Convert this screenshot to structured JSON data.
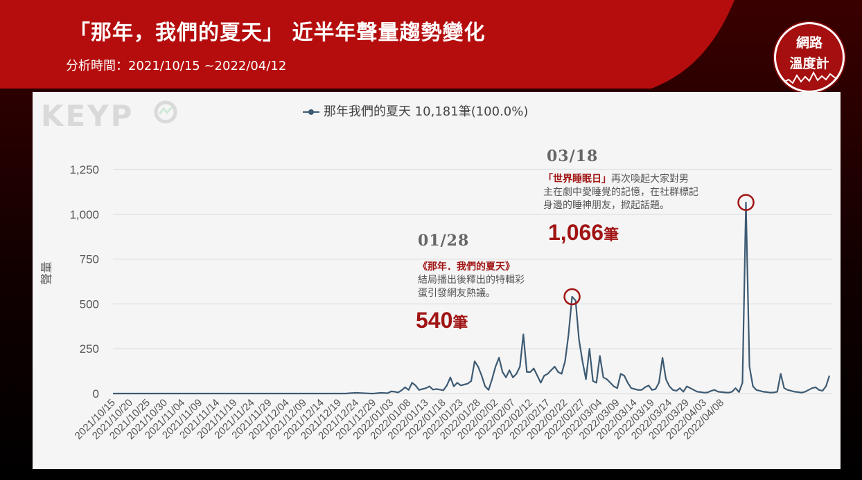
{
  "header": {
    "title": "「那年，我們的夏天」 近半年聲量趨勢變化",
    "period": "分析時間：2021/10/15 ~2022/04/12"
  },
  "badge": {
    "line1": "網路",
    "line2": "溫度計"
  },
  "logo": {
    "text": "KEYP"
  },
  "legend": {
    "label": "那年我們的夏天 10,181筆(100.0%)"
  },
  "annotations": {
    "a1": {
      "date": "01/28",
      "highlight": "《那年．我們的夏天》",
      "line1": "結局播出後釋出的特輯彩",
      "line2": "蛋引發網友熱議。",
      "value": "540",
      "unit": "筆"
    },
    "a2": {
      "date": "03/18",
      "highlight": "「世界睡眠日」",
      "line1_rest": "再次喚起大家對男",
      "line2": "主在劇中愛睡覺的記憶，在社群標記",
      "line3": "身邊的睡神朋友，掀起話題。",
      "value": "1,066",
      "unit": "筆"
    }
  },
  "colors": {
    "line": "#3d5a73",
    "accent": "#a11414",
    "header": "#b50d0d"
  },
  "chart_data": {
    "type": "line",
    "title": "",
    "xlabel": "",
    "ylabel": "聲量",
    "ylim": [
      0,
      1250
    ],
    "yticks": [
      0,
      250,
      500,
      750,
      1000,
      1250
    ],
    "ytick_labels": [
      "0",
      "250",
      "500",
      "750",
      "1,000",
      "1,250"
    ],
    "xtick_labels": [
      "2021/10/15",
      "2021/10/20",
      "2021/10/25",
      "2021/10/30",
      "2021/11/04",
      "2021/11/09",
      "2021/11/14",
      "2021/11/19",
      "2021/11/24",
      "2021/11/29",
      "2021/12/04",
      "2021/12/09",
      "2021/12/14",
      "2021/12/19",
      "2021/12/24",
      "2021/12/29",
      "2022/01/03",
      "2022/01/08",
      "2022/01/13",
      "2022/01/18",
      "2022/01/23",
      "2022/01/28",
      "2022/02/02",
      "2022/02/07",
      "2022/02/12",
      "2022/02/17",
      "2022/02/22",
      "2022/02/27",
      "2022/03/04",
      "2022/03/09",
      "2022/03/14",
      "2022/03/19",
      "2022/03/24",
      "2022/03/29",
      "2022/04/03",
      "2022/04/08"
    ],
    "grid": true,
    "legend": "top",
    "series": [
      {
        "name": "那年我們的夏天",
        "x_start": "2021/10/15",
        "x_end": "2022/04/12",
        "values": [
          0,
          0,
          0,
          0,
          0,
          0,
          0,
          0,
          0,
          0,
          0,
          0,
          0,
          0,
          0,
          0,
          0,
          0,
          0,
          0,
          0,
          0,
          0,
          0,
          0,
          0,
          0,
          0,
          0,
          0,
          0,
          0,
          0,
          0,
          0,
          0,
          0,
          0,
          0,
          0,
          0,
          0,
          0,
          0,
          0,
          0,
          0,
          0,
          0,
          0,
          0,
          0,
          0,
          0,
          0,
          0,
          0,
          0,
          0,
          0,
          0,
          0,
          0,
          0,
          0,
          0,
          0,
          0,
          2,
          3,
          4,
          3,
          2,
          1,
          0,
          0,
          2,
          4,
          3,
          2,
          12,
          10,
          6,
          18,
          35,
          20,
          60,
          45,
          20,
          25,
          30,
          40,
          22,
          25,
          22,
          18,
          45,
          90,
          40,
          60,
          45,
          50,
          55,
          70,
          180,
          150,
          100,
          40,
          20,
          80,
          150,
          200,
          120,
          90,
          130,
          90,
          110,
          150,
          330,
          120,
          120,
          140,
          100,
          60,
          100,
          110,
          130,
          150,
          120,
          110,
          180,
          330,
          540,
          520,
          300,
          180,
          80,
          250,
          70,
          60,
          210,
          90,
          80,
          60,
          40,
          30,
          110,
          100,
          60,
          30,
          25,
          20,
          20,
          35,
          45,
          20,
          25,
          60,
          200,
          80,
          40,
          20,
          15,
          30,
          10,
          40,
          30,
          20,
          10,
          8,
          5,
          6,
          15,
          20,
          10,
          8,
          6,
          5,
          10,
          30,
          8,
          60,
          1066,
          150,
          40,
          20,
          15,
          10,
          8,
          5,
          6,
          10,
          110,
          30,
          20,
          15,
          10,
          8,
          5,
          10,
          20,
          30,
          35,
          20,
          15,
          40,
          100
        ]
      }
    ]
  }
}
